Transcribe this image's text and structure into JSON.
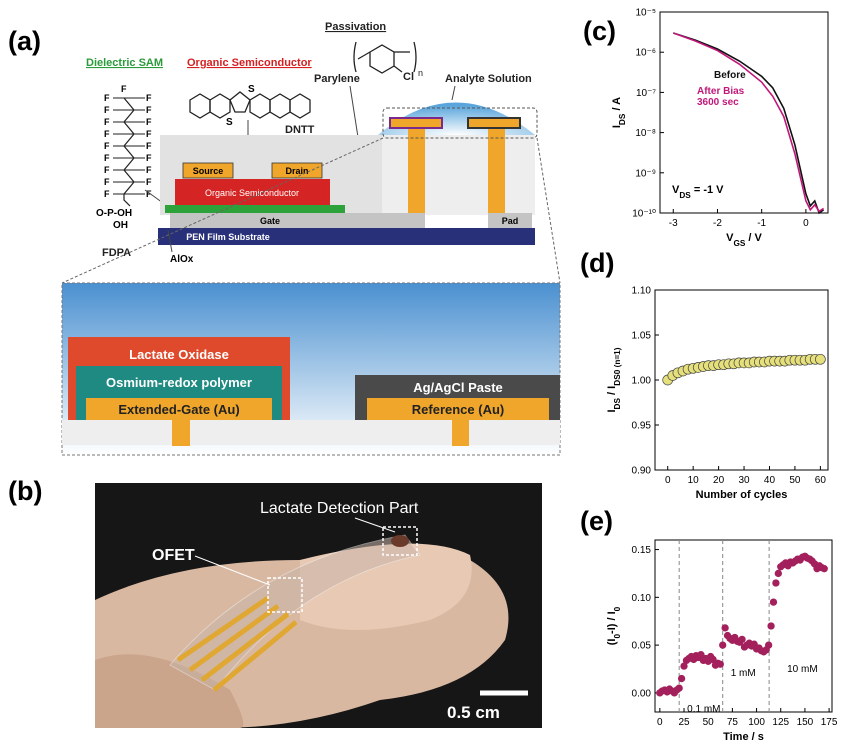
{
  "diagram": {
    "panel": "(a)",
    "dielectric_sam": "Dielectric SAM",
    "organic_semiconductor_title": "Organic Semiconductor",
    "passivation": "Passivation",
    "parylene": "Parylene",
    "chlorine": "Cl",
    "repeat": "n",
    "analyte_solution": "Analyte Solution",
    "dntt": "DNTT",
    "sulfur": "S",
    "fluorine": "F",
    "phosphonate": "O-P-OH",
    "hydroxyl": "OH",
    "fdpa": "FDPA",
    "source": "Source",
    "drain": "Drain",
    "organic_semiconductor_layer": "Organic Semiconductor",
    "gate": "Gate",
    "pad": "Pad",
    "substrate": "PEN Film Substrate",
    "alox": "AlOx",
    "lactate_oxidase": "Lactate Oxidase",
    "osmium_polymer": "Osmium-redox polymer",
    "extended_gate": "Extended-Gate (Au)",
    "ag_agcl": "Ag/AgCl Paste",
    "reference": "Reference (Au)"
  },
  "photo": {
    "panel": "(b)",
    "detection_part": "Lactate Detection Part",
    "ofet": "OFET",
    "scale_bar": "0.5 cm"
  },
  "chart_data": [
    {
      "type": "line",
      "panel": "(c)",
      "log_y": true,
      "x_label": [
        "V",
        "GS",
        " / V"
      ],
      "y_label": [
        "I",
        "DS",
        " / A"
      ],
      "annotation": [
        "V",
        "DS",
        " = -1 V"
      ],
      "xlim": [
        -3.3,
        0.5
      ],
      "ylim": [
        1e-10,
        1e-05
      ],
      "xticks": [
        -3,
        -2,
        -1,
        0
      ],
      "yticks": [
        {
          "value": 1e-10,
          "label": "10⁻¹⁰"
        },
        {
          "value": 1e-09,
          "label": "10⁻⁹"
        },
        {
          "value": 1e-08,
          "label": "10⁻⁸"
        },
        {
          "value": 1e-07,
          "label": "10⁻⁷"
        },
        {
          "value": 1e-06,
          "label": "10⁻⁶"
        },
        {
          "value": 1e-05,
          "label": "10⁻⁵"
        }
      ],
      "x": [
        -3,
        -2.5,
        -2,
        -1.5,
        -1,
        -0.75,
        -0.5,
        -0.25,
        0,
        0.1,
        0.2,
        0.3,
        0.4
      ],
      "series": [
        {
          "name": "Before",
          "color": "#111111",
          "values": [
            3e-06,
            2e-06,
            1.2e-06,
            6e-07,
            2.5e-07,
            1.3e-07,
            4e-08,
            5e-09,
            3e-10,
            1.5e-10,
            2e-10,
            1e-10,
            1.2e-10
          ]
        },
        {
          "name": "After Bias 3600 sec",
          "color": "#c0187a",
          "values": [
            3e-06,
            1.9e-06,
            1.1e-06,
            5e-07,
            1.8e-07,
            8e-08,
            2.5e-08,
            3e-09,
            2e-10,
            1.2e-10,
            1.6e-10,
            1.1e-10,
            1.3e-10
          ]
        }
      ]
    },
    {
      "type": "scatter",
      "panel": "(d)",
      "log_y": false,
      "x_label": [
        "Number of cycles"
      ],
      "y_label": [
        "I",
        "DS",
        " / I",
        "DS0 (n=1)"
      ],
      "xlim": [
        -5,
        63
      ],
      "ylim": [
        0.9,
        1.1
      ],
      "xticks": [
        0,
        10,
        20,
        30,
        40,
        50,
        60
      ],
      "yticks": [
        {
          "value": 0.9,
          "label": "0.90"
        },
        {
          "value": 0.95,
          "label": "0.95"
        },
        {
          "value": 1.0,
          "label": "1.00"
        },
        {
          "value": 1.05,
          "label": "1.05"
        },
        {
          "value": 1.1,
          "label": "1.10"
        }
      ],
      "x": [
        0,
        2,
        4,
        6,
        8,
        10,
        12,
        14,
        16,
        18,
        20,
        22,
        24,
        26,
        28,
        30,
        32,
        34,
        36,
        38,
        40,
        42,
        44,
        46,
        48,
        50,
        52,
        54,
        56,
        58,
        60
      ],
      "series": [
        {
          "color": "#e6e07c",
          "values": [
            1.0,
            1.005,
            1.008,
            1.01,
            1.012,
            1.013,
            1.014,
            1.015,
            1.016,
            1.016,
            1.017,
            1.017,
            1.018,
            1.018,
            1.019,
            1.019,
            1.019,
            1.02,
            1.02,
            1.02,
            1.021,
            1.021,
            1.021,
            1.021,
            1.022,
            1.022,
            1.022,
            1.022,
            1.023,
            1.023,
            1.023
          ]
        }
      ]
    },
    {
      "type": "scatter",
      "panel": "(e)",
      "log_y": false,
      "x_label": [
        "Time / s"
      ],
      "y_label": [
        "(I",
        "0",
        "-I) / I",
        "0"
      ],
      "xlim": [
        -5,
        178
      ],
      "ylim": [
        -0.02,
        0.16
      ],
      "xticks": [
        0,
        25,
        50,
        75,
        100,
        125,
        150,
        175
      ],
      "yticks": [
        {
          "value": 0,
          "label": "0.00"
        },
        {
          "value": 0.05,
          "label": "0.05"
        },
        {
          "value": 0.1,
          "label": "0.10"
        },
        {
          "value": 0.15,
          "label": "0.15"
        }
      ],
      "events": [
        {
          "x": 20,
          "label": "0.1 mM"
        },
        {
          "x": 65,
          "label": "1 mM"
        },
        {
          "x": 113,
          "label": "10 mM"
        }
      ],
      "x": [
        0,
        2.5,
        5,
        7.5,
        10,
        12.5,
        15,
        17.5,
        20,
        22.5,
        25,
        27.5,
        30,
        32.5,
        35,
        37.5,
        40,
        42.5,
        45,
        47.5,
        50,
        52.5,
        55,
        57.5,
        60,
        62.5,
        65,
        67.5,
        70,
        72.5,
        75,
        77.5,
        80,
        82.5,
        85,
        87.5,
        90,
        92.5,
        95,
        97.5,
        100,
        102.5,
        105,
        107.5,
        110,
        112.5,
        115,
        117.5,
        120,
        122.5,
        125,
        127.5,
        130,
        132.5,
        135,
        137.5,
        140,
        142.5,
        145,
        147.5,
        150,
        152.5,
        155,
        157.5,
        160,
        162.5,
        165,
        167.5,
        170
      ],
      "series": [
        {
          "color": "#a3205c",
          "values": [
            0.0,
            0.002,
            0.003,
            0.001,
            0.004,
            0.002,
            0.0,
            0.003,
            0.005,
            0.015,
            0.028,
            0.034,
            0.036,
            0.038,
            0.035,
            0.039,
            0.037,
            0.04,
            0.034,
            0.036,
            0.033,
            0.038,
            0.035,
            0.029,
            0.031,
            0.03,
            0.05,
            0.068,
            0.06,
            0.057,
            0.055,
            0.058,
            0.054,
            0.053,
            0.056,
            0.048,
            0.05,
            0.052,
            0.049,
            0.051,
            0.046,
            0.047,
            0.044,
            0.043,
            0.045,
            0.05,
            0.07,
            0.095,
            0.115,
            0.125,
            0.132,
            0.134,
            0.136,
            0.133,
            0.137,
            0.136,
            0.138,
            0.14,
            0.139,
            0.142,
            0.143,
            0.141,
            0.14,
            0.138,
            0.135,
            0.13,
            0.133,
            0.131,
            0.13
          ]
        }
      ]
    }
  ]
}
